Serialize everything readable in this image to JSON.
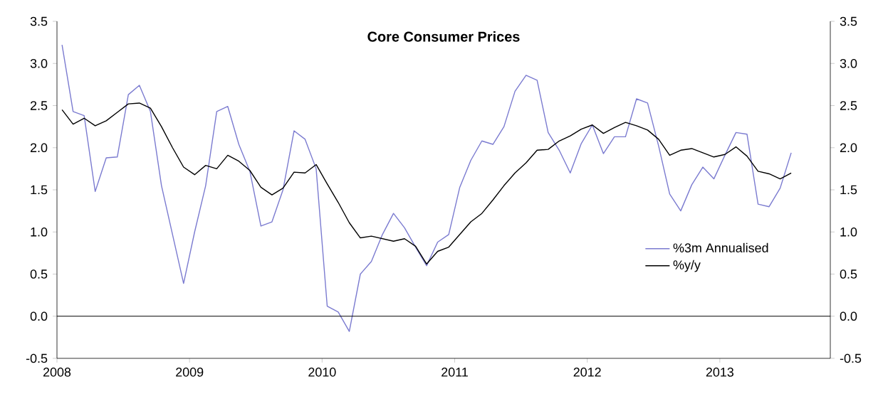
{
  "chart_data": {
    "type": "line",
    "title": "Core Consumer Prices",
    "x": [
      "2008-01-15",
      "2008-02-15",
      "2008-03-15",
      "2008-04-15",
      "2008-05-15",
      "2008-06-15",
      "2008-07-15",
      "2008-08-15",
      "2008-09-15",
      "2008-10-15",
      "2008-11-15",
      "2008-12-15",
      "2009-01-15",
      "2009-02-15",
      "2009-03-15",
      "2009-04-15",
      "2009-05-15",
      "2009-06-15",
      "2009-07-15",
      "2009-08-15",
      "2009-09-15",
      "2009-10-15",
      "2009-11-15",
      "2009-12-15",
      "2010-01-15",
      "2010-02-15",
      "2010-03-15",
      "2010-04-15",
      "2010-05-15",
      "2010-06-15",
      "2010-07-15",
      "2010-08-15",
      "2010-09-15",
      "2010-10-15",
      "2010-11-15",
      "2010-12-15",
      "2011-01-15",
      "2011-02-15",
      "2011-03-15",
      "2011-04-15",
      "2011-05-15",
      "2011-06-15",
      "2011-07-15",
      "2011-08-15",
      "2011-09-15",
      "2011-10-15",
      "2011-11-15",
      "2011-12-15",
      "2012-01-15",
      "2012-02-15",
      "2012-03-15",
      "2012-04-15",
      "2012-05-15",
      "2012-06-15",
      "2012-07-15",
      "2012-08-15",
      "2012-09-15",
      "2012-10-15",
      "2012-11-15",
      "2012-12-15",
      "2013-01-15",
      "2013-02-15",
      "2013-03-15",
      "2013-04-15",
      "2013-05-15",
      "2013-06-15",
      "2013-07-15"
    ],
    "series": [
      {
        "name": "%3m Annualised",
        "color": "#7b7bd0",
        "values": [
          3.22,
          2.43,
          2.38,
          1.48,
          1.88,
          1.89,
          2.63,
          2.74,
          2.43,
          1.55,
          0.97,
          0.39,
          1.0,
          1.55,
          2.43,
          2.49,
          2.04,
          1.72,
          1.07,
          1.12,
          1.5,
          2.2,
          2.1,
          1.75,
          0.12,
          0.05,
          -0.18,
          0.5,
          0.65,
          0.97,
          1.22,
          1.05,
          0.82,
          0.6,
          0.88,
          0.97,
          1.53,
          1.85,
          2.08,
          2.04,
          2.25,
          2.67,
          2.86,
          2.8,
          2.18,
          1.97,
          1.7,
          2.05,
          2.27,
          1.93,
          2.13,
          2.13,
          2.58,
          2.53,
          2.02,
          1.45,
          1.25,
          1.56,
          1.77,
          1.63,
          1.91,
          2.18,
          2.16,
          1.33,
          1.3,
          1.52,
          1.94
        ]
      },
      {
        "name": "%y/y",
        "color": "#000000",
        "values": [
          2.45,
          2.28,
          2.35,
          2.26,
          2.32,
          2.42,
          2.52,
          2.53,
          2.47,
          2.25,
          2.0,
          1.77,
          1.68,
          1.79,
          1.75,
          1.91,
          1.84,
          1.73,
          1.53,
          1.44,
          1.52,
          1.71,
          1.7,
          1.8,
          1.57,
          1.35,
          1.11,
          0.93,
          0.95,
          0.92,
          0.89,
          0.92,
          0.83,
          0.62,
          0.77,
          0.82,
          0.97,
          1.12,
          1.22,
          1.38,
          1.55,
          1.7,
          1.82,
          1.97,
          1.98,
          2.08,
          2.14,
          2.22,
          2.27,
          2.17,
          2.24,
          2.3,
          2.26,
          2.21,
          2.1,
          1.91,
          1.97,
          1.99,
          1.94,
          1.89,
          1.92,
          2.01,
          1.9,
          1.72,
          1.69,
          1.63,
          1.7
        ]
      }
    ],
    "xlim": [
      "2008-01",
      "2013-11"
    ],
    "xticks": [
      "2008",
      "2009",
      "2010",
      "2011",
      "2012",
      "2013"
    ],
    "ylim": [
      -0.5,
      3.5
    ],
    "yticks": [
      -0.5,
      {
        "value": 0,
        "label": "0.0"
      },
      0.5,
      {
        "value": 1,
        "label": "1.0"
      },
      1.5,
      {
        "value": 2,
        "label": "2.0"
      },
      2.5,
      {
        "value": 3,
        "label": "3.0"
      },
      3.5
    ],
    "y2lim": [
      -0.5,
      3.5
    ],
    "y2ticks": [
      -0.5,
      {
        "value": 0,
        "label": "0.0"
      },
      0.5,
      {
        "value": 1,
        "label": "1.0"
      },
      1.5,
      {
        "value": 2,
        "label": "2.0"
      },
      2.5,
      {
        "value": 3,
        "label": "3.0"
      },
      3.5
    ],
    "ref_lines": [
      {
        "axis": "y",
        "value": 0
      }
    ],
    "legend": "right",
    "marker": "none",
    "line_style": "solid"
  }
}
